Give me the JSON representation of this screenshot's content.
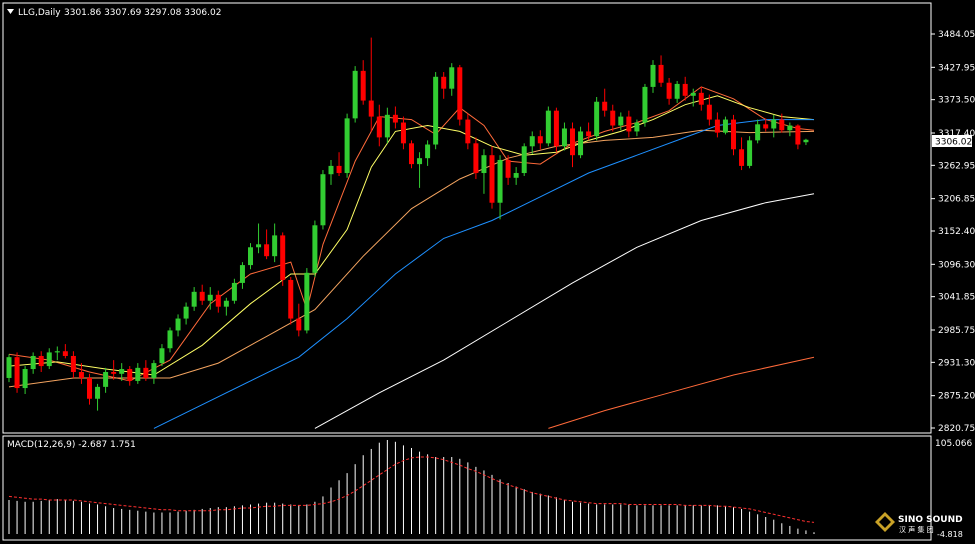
{
  "header": {
    "symbol": "LLG,Daily",
    "ohlc": "3301.86 3307.69 3297.08 3306.02"
  },
  "indicator": {
    "label": "MACD(12,26,9) -2.687 1.751",
    "top_value": "105.066",
    "bottom_value": "-4.818"
  },
  "logo": {
    "name": "SINO SOUND",
    "sub": "汉 声 集 团"
  },
  "colors": {
    "background": "#000000",
    "frame": "#FFFFFF",
    "bull": "#32CD32",
    "bear": "#FF0000",
    "ma_yellow": "#FFFF66",
    "ma_orange": "#F4A460",
    "ma_blue": "#1E90FF",
    "ma_white": "#FFFFFF",
    "ma_red": "#FF6A3A",
    "macd_hist": "#FFFFFF",
    "macd_signal": "#FF3030",
    "price_tag_bg": "#FFFFFF",
    "price_tag_text": "#000000"
  },
  "chart_data": {
    "type": "candlestick",
    "y_ticks": [
      "3484.05",
      "3427.95",
      "3373.50",
      "3317.40",
      "3262.95",
      "3206.85",
      "3152.40",
      "3096.30",
      "3041.85",
      "2985.75",
      "2931.30",
      "2875.20",
      "2820.75"
    ],
    "ylim": [
      2820.75,
      3484.05
    ],
    "current_price": "3306.02",
    "candles": [
      [
        2905,
        2945,
        2898,
        2940
      ],
      [
        2940,
        2948,
        2880,
        2888
      ],
      [
        2888,
        2925,
        2878,
        2920
      ],
      [
        2920,
        2948,
        2912,
        2942
      ],
      [
        2942,
        2950,
        2915,
        2925
      ],
      [
        2925,
        2955,
        2920,
        2948
      ],
      [
        2948,
        2958,
        2935,
        2950
      ],
      [
        2950,
        2962,
        2938,
        2942
      ],
      [
        2942,
        2950,
        2905,
        2915
      ],
      [
        2915,
        2930,
        2895,
        2905
      ],
      [
        2905,
        2912,
        2860,
        2870
      ],
      [
        2870,
        2895,
        2850,
        2890
      ],
      [
        2890,
        2922,
        2880,
        2915
      ],
      [
        2915,
        2935,
        2902,
        2912
      ],
      [
        2912,
        2930,
        2900,
        2920
      ],
      [
        2920,
        2925,
        2892,
        2900
      ],
      [
        2900,
        2930,
        2895,
        2922
      ],
      [
        2922,
        2935,
        2900,
        2905
      ],
      [
        2905,
        2935,
        2895,
        2930
      ],
      [
        2930,
        2962,
        2925,
        2955
      ],
      [
        2955,
        2990,
        2948,
        2985
      ],
      [
        2985,
        3012,
        2975,
        3005
      ],
      [
        3005,
        3032,
        2995,
        3025
      ],
      [
        3025,
        3058,
        3018,
        3050
      ],
      [
        3050,
        3062,
        3028,
        3035
      ],
      [
        3035,
        3058,
        3020,
        3045
      ],
      [
        3045,
        3052,
        3015,
        3025
      ],
      [
        3025,
        3040,
        3010,
        3035
      ],
      [
        3035,
        3072,
        3030,
        3065
      ],
      [
        3065,
        3100,
        3055,
        3095
      ],
      [
        3095,
        3132,
        3088,
        3125
      ],
      [
        3125,
        3165,
        3115,
        3130
      ],
      [
        3130,
        3155,
        3105,
        3110
      ],
      [
        3110,
        3165,
        3100,
        3145
      ],
      [
        3145,
        3150,
        3060,
        3070
      ],
      [
        3070,
        3075,
        2995,
        3005
      ],
      [
        3005,
        3030,
        2975,
        2985
      ],
      [
        2985,
        3090,
        2980,
        3082
      ],
      [
        3082,
        3170,
        3075,
        3162
      ],
      [
        3162,
        3255,
        3155,
        3248
      ],
      [
        3248,
        3272,
        3230,
        3262
      ],
      [
        3262,
        3285,
        3245,
        3250
      ],
      [
        3250,
        3350,
        3242,
        3342
      ],
      [
        3342,
        3430,
        3335,
        3422
      ],
      [
        3422,
        3440,
        3365,
        3372
      ],
      [
        3372,
        3478,
        3320,
        3345
      ],
      [
        3345,
        3365,
        3295,
        3310
      ],
      [
        3310,
        3360,
        3300,
        3348
      ],
      [
        3348,
        3362,
        3325,
        3335
      ],
      [
        3335,
        3345,
        3290,
        3300
      ],
      [
        3300,
        3305,
        3258,
        3265
      ],
      [
        3265,
        3285,
        3225,
        3275
      ],
      [
        3275,
        3305,
        3262,
        3298
      ],
      [
        3298,
        3420,
        3290,
        3412
      ],
      [
        3412,
        3420,
        3375,
        3392
      ],
      [
        3392,
        3435,
        3380,
        3428
      ],
      [
        3428,
        3432,
        3330,
        3340
      ],
      [
        3340,
        3350,
        3290,
        3300
      ],
      [
        3300,
        3310,
        3240,
        3250
      ],
      [
        3250,
        3290,
        3215,
        3280
      ],
      [
        3280,
        3295,
        3190,
        3200
      ],
      [
        3200,
        3280,
        3172,
        3272
      ],
      [
        3272,
        3280,
        3230,
        3242
      ],
      [
        3242,
        3260,
        3230,
        3250
      ],
      [
        3250,
        3300,
        3245,
        3295
      ],
      [
        3295,
        3320,
        3282,
        3312
      ],
      [
        3312,
        3322,
        3290,
        3300
      ],
      [
        3300,
        3362,
        3295,
        3355
      ],
      [
        3355,
        3360,
        3285,
        3295
      ],
      [
        3295,
        3335,
        3288,
        3325
      ],
      [
        3325,
        3335,
        3260,
        3280
      ],
      [
        3280,
        3328,
        3275,
        3320
      ],
      [
        3320,
        3335,
        3305,
        3312
      ],
      [
        3312,
        3378,
        3305,
        3370
      ],
      [
        3370,
        3392,
        3345,
        3355
      ],
      [
        3355,
        3365,
        3320,
        3330
      ],
      [
        3330,
        3352,
        3322,
        3345
      ],
      [
        3345,
        3355,
        3310,
        3320
      ],
      [
        3320,
        3340,
        3312,
        3335
      ],
      [
        3335,
        3400,
        3328,
        3395
      ],
      [
        3395,
        3440,
        3385,
        3432
      ],
      [
        3432,
        3448,
        3395,
        3402
      ],
      [
        3402,
        3410,
        3365,
        3375
      ],
      [
        3375,
        3405,
        3368,
        3400
      ],
      [
        3400,
        3412,
        3372,
        3380
      ],
      [
        3380,
        3392,
        3362,
        3385
      ],
      [
        3385,
        3395,
        3355,
        3365
      ],
      [
        3365,
        3382,
        3330,
        3340
      ],
      [
        3340,
        3352,
        3310,
        3318
      ],
      [
        3318,
        3345,
        3315,
        3340
      ],
      [
        3340,
        3348,
        3280,
        3290
      ],
      [
        3290,
        3310,
        3255,
        3262
      ],
      [
        3262,
        3312,
        3258,
        3305
      ],
      [
        3305,
        3340,
        3300,
        3332
      ],
      [
        3332,
        3342,
        3320,
        3325
      ],
      [
        3325,
        3348,
        3310,
        3340
      ],
      [
        3340,
        3350,
        3318,
        3322
      ],
      [
        3322,
        3335,
        3312,
        3330
      ],
      [
        3330,
        3332,
        3290,
        3298
      ],
      [
        3301.86,
        3307.69,
        3297.08,
        3306.02
      ]
    ],
    "ma_lines": [
      {
        "color_key": "ma_red",
        "points": [
          [
            0,
            2945
          ],
          [
            5,
            2935
          ],
          [
            10,
            2915
          ],
          [
            15,
            2900
          ],
          [
            20,
            2935
          ],
          [
            25,
            3030
          ],
          [
            30,
            3080
          ],
          [
            35,
            3100
          ],
          [
            37,
            3020
          ],
          [
            39,
            3130
          ],
          [
            43,
            3270
          ],
          [
            46,
            3345
          ],
          [
            50,
            3340
          ],
          [
            53,
            3315
          ],
          [
            56,
            3360
          ],
          [
            59,
            3330
          ],
          [
            62,
            3270
          ],
          [
            66,
            3265
          ],
          [
            70,
            3300
          ],
          [
            74,
            3320
          ],
          [
            78,
            3335
          ],
          [
            82,
            3355
          ],
          [
            86,
            3395
          ],
          [
            90,
            3375
          ],
          [
            94,
            3340
          ],
          [
            98,
            3325
          ],
          [
            100,
            3322
          ]
        ]
      },
      {
        "color_key": "ma_yellow",
        "points": [
          [
            0,
            2925
          ],
          [
            6,
            2932
          ],
          [
            12,
            2920
          ],
          [
            18,
            2910
          ],
          [
            24,
            2960
          ],
          [
            30,
            3030
          ],
          [
            35,
            3080
          ],
          [
            38,
            3080
          ],
          [
            42,
            3155
          ],
          [
            45,
            3260
          ],
          [
            48,
            3320
          ],
          [
            52,
            3330
          ],
          [
            56,
            3320
          ],
          [
            60,
            3295
          ],
          [
            64,
            3280
          ],
          [
            68,
            3285
          ],
          [
            72,
            3305
          ],
          [
            76,
            3320
          ],
          [
            80,
            3340
          ],
          [
            84,
            3365
          ],
          [
            88,
            3380
          ],
          [
            92,
            3360
          ],
          [
            96,
            3345
          ],
          [
            100,
            3340
          ]
        ]
      },
      {
        "color_key": "ma_orange",
        "points": [
          [
            0,
            2890
          ],
          [
            8,
            2905
          ],
          [
            14,
            2905
          ],
          [
            20,
            2905
          ],
          [
            26,
            2930
          ],
          [
            32,
            2975
          ],
          [
            38,
            3020
          ],
          [
            44,
            3110
          ],
          [
            50,
            3190
          ],
          [
            56,
            3240
          ],
          [
            62,
            3275
          ],
          [
            68,
            3295
          ],
          [
            74,
            3305
          ],
          [
            80,
            3310
          ],
          [
            86,
            3322
          ],
          [
            92,
            3318
          ],
          [
            100,
            3320
          ]
        ]
      },
      {
        "color_key": "ma_blue",
        "points": [
          [
            18,
            2820
          ],
          [
            24,
            2860
          ],
          [
            30,
            2900
          ],
          [
            36,
            2940
          ],
          [
            42,
            3005
          ],
          [
            48,
            3080
          ],
          [
            54,
            3140
          ],
          [
            60,
            3170
          ],
          [
            66,
            3210
          ],
          [
            72,
            3250
          ],
          [
            78,
            3280
          ],
          [
            84,
            3310
          ],
          [
            88,
            3330
          ],
          [
            94,
            3340
          ],
          [
            100,
            3340
          ]
        ]
      },
      {
        "color_key": "ma_white",
        "points": [
          [
            38,
            2820
          ],
          [
            46,
            2880
          ],
          [
            54,
            2935
          ],
          [
            62,
            3000
          ],
          [
            70,
            3065
          ],
          [
            78,
            3125
          ],
          [
            86,
            3170
          ],
          [
            94,
            3200
          ],
          [
            100,
            3215
          ]
        ]
      },
      {
        "color_key": "ma_red",
        "points": [
          [
            67,
            2820
          ],
          [
            74,
            2850
          ],
          [
            82,
            2880
          ],
          [
            90,
            2910
          ],
          [
            100,
            2940
          ]
        ]
      }
    ],
    "macd": {
      "hist": [
        38,
        37,
        36,
        36,
        37,
        38,
        39,
        38,
        37,
        36,
        34,
        33,
        31,
        29,
        28,
        27,
        26,
        25,
        24,
        24,
        24,
        25,
        26,
        27,
        28,
        29,
        30,
        30,
        31,
        32,
        33,
        34,
        35,
        35,
        34,
        33,
        32,
        33,
        36,
        42,
        52,
        60,
        68,
        78,
        88,
        95,
        102,
        105,
        103,
        99,
        96,
        92,
        89,
        86,
        86,
        86,
        84,
        80,
        75,
        71,
        66,
        61,
        57,
        53,
        50,
        47,
        45,
        43,
        41,
        38,
        36,
        35,
        34,
        33,
        33,
        33,
        33,
        33,
        32,
        32,
        32,
        32,
        32,
        32,
        32,
        32,
        32,
        32,
        32,
        31,
        30,
        28,
        25,
        22,
        19,
        16,
        12,
        9,
        6,
        4,
        2
      ],
      "signal": [
        42,
        41,
        40,
        39,
        39,
        38,
        38,
        38,
        38,
        37,
        36,
        35,
        34,
        33,
        32,
        31,
        30,
        29,
        28,
        27,
        27,
        26,
        26,
        26,
        26,
        26,
        27,
        27,
        28,
        29,
        29,
        30,
        31,
        31,
        32,
        32,
        32,
        32,
        33,
        34,
        36,
        39,
        43,
        48,
        54,
        60,
        66,
        72,
        78,
        82,
        85,
        86,
        86,
        85,
        83,
        80,
        77,
        73,
        70,
        66,
        62,
        58,
        55,
        52,
        49,
        46,
        44,
        42,
        40,
        38,
        37,
        36,
        35,
        34,
        34,
        34,
        34,
        33,
        33,
        33,
        33,
        33,
        33,
        33,
        32,
        32,
        32,
        32,
        31,
        31,
        30,
        29,
        28,
        26,
        24,
        22,
        20,
        18,
        16,
        14,
        13
      ]
    }
  }
}
